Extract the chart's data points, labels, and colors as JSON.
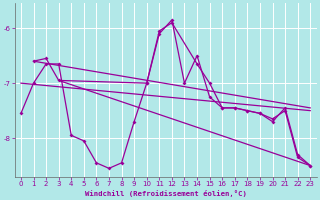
{
  "background_color": "#b2e8e8",
  "line_color": "#990099",
  "grid_color": "#ffffff",
  "xlabel": "Windchill (Refroidissement éolien,°C)",
  "xlabel_color": "#990099",
  "tick_color": "#990099",
  "ylim": [
    -8.7,
    -5.55
  ],
  "xlim": [
    -0.5,
    23.5
  ],
  "yticks": [
    -8,
    -7,
    -6
  ],
  "xticks": [
    0,
    1,
    2,
    3,
    4,
    5,
    6,
    7,
    8,
    9,
    10,
    11,
    12,
    13,
    14,
    15,
    16,
    17,
    18,
    19,
    20,
    21,
    22,
    23
  ],
  "series1_x": [
    0,
    1,
    2,
    3,
    4,
    5,
    6,
    7,
    8,
    9,
    10,
    11,
    12,
    13,
    14,
    15,
    16,
    17,
    18,
    19,
    20,
    21,
    22,
    23
  ],
  "series1_y": [
    -7.55,
    -7.0,
    -6.65,
    -6.65,
    -7.95,
    -8.05,
    -8.45,
    -8.55,
    -8.45,
    -7.7,
    -7.0,
    -6.1,
    -5.85,
    -7.0,
    -6.5,
    -7.25,
    -7.45,
    -7.45,
    -7.5,
    -7.55,
    -7.65,
    -7.5,
    -8.35,
    -8.5
  ],
  "series2_x": [
    1,
    2,
    3,
    10,
    11,
    12,
    14,
    15,
    16,
    17,
    18,
    19,
    20,
    21,
    22,
    23
  ],
  "series2_y": [
    -6.6,
    -6.55,
    -6.95,
    -7.0,
    -6.05,
    -5.9,
    -6.65,
    -7.0,
    -7.45,
    -7.45,
    -7.5,
    -7.55,
    -7.7,
    -7.45,
    -8.3,
    -8.5
  ],
  "trendline1_x": [
    1,
    23
  ],
  "trendline1_y": [
    -6.6,
    -7.45
  ],
  "trendline2_x": [
    3,
    23
  ],
  "trendline2_y": [
    -6.95,
    -8.5
  ],
  "trendline3_x": [
    0,
    23
  ],
  "trendline3_y": [
    -7.0,
    -7.5
  ]
}
